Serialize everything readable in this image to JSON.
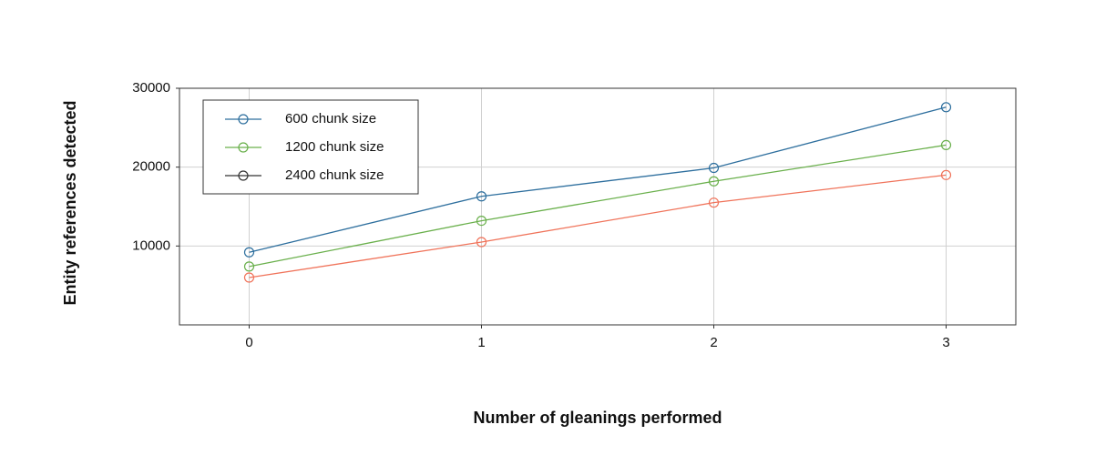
{
  "chart_data": {
    "type": "line",
    "xlabel": "Number of gleanings performed",
    "ylabel": "Entity references detected",
    "x": [
      0,
      1,
      2,
      3
    ],
    "series": [
      {
        "name": "600 chunk size",
        "color": "#2e6f9e",
        "legend_color": "#2e6f9e",
        "values": [
          9200,
          16300,
          19900,
          27600
        ]
      },
      {
        "name": "1200 chunk size",
        "color": "#6ab04c",
        "legend_color": "#6ab04c",
        "values": [
          7400,
          13200,
          18200,
          22800
        ]
      },
      {
        "name": "2400 chunk size",
        "color": "#f0735a",
        "legend_color": "#333333",
        "values": [
          6000,
          10500,
          15500,
          19000
        ]
      }
    ],
    "xlim": [
      -0.3,
      3.3
    ],
    "xticks": [
      0,
      1,
      2,
      3
    ],
    "ylim": [
      0,
      30000
    ],
    "yticks": [
      10000,
      20000,
      30000
    ],
    "grid": true,
    "legend": "upper-left"
  }
}
